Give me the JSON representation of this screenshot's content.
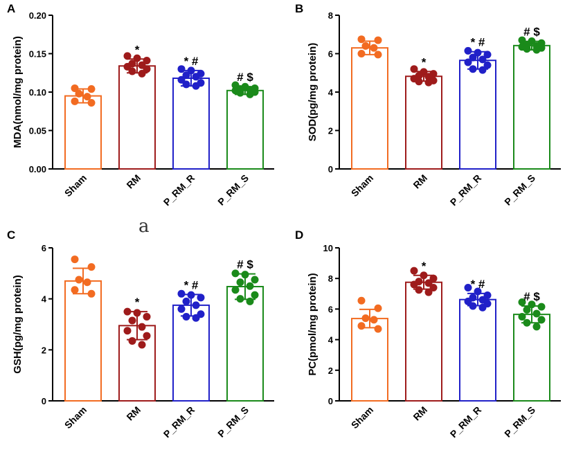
{
  "caption": "a",
  "categories": [
    "Sham",
    "RM",
    "P_RM_R",
    "P_RM_S"
  ],
  "colors": [
    "#f26b21",
    "#9e1b1b",
    "#2020c8",
    "#1a8a1a"
  ],
  "chart_data": [
    {
      "type": "bar",
      "panel_label": "A",
      "title": "",
      "xlabel": "",
      "ylabel": "MDA(nmol/mg protein)",
      "ylim": [
        0,
        0.2
      ],
      "yticks": [
        "0.00",
        "0.05",
        "0.10",
        "0.15",
        "0.20"
      ],
      "categories": [
        "Sham",
        "RM",
        "P_RM_R",
        "P_RM_S"
      ],
      "values": [
        0.095,
        0.134,
        0.118,
        0.102
      ],
      "errors": [
        0.009,
        0.009,
        0.01,
        0.005
      ],
      "annotations": [
        "",
        "*",
        "* #",
        "# $"
      ],
      "points": [
        [
          0.105,
          0.104,
          0.098,
          0.094,
          0.088,
          0.086
        ],
        [
          0.147,
          0.144,
          0.141,
          0.137,
          0.135,
          0.133,
          0.13,
          0.127,
          0.124
        ],
        [
          0.13,
          0.128,
          0.124,
          0.122,
          0.12,
          0.116,
          0.112,
          0.11,
          0.108
        ],
        [
          0.109,
          0.107,
          0.105,
          0.104,
          0.103,
          0.102,
          0.1,
          0.099,
          0.097
        ]
      ]
    },
    {
      "type": "bar",
      "panel_label": "B",
      "title": "",
      "xlabel": "",
      "ylabel": "SOD(pg/mg protein)",
      "ylim": [
        0,
        8
      ],
      "yticks": [
        "0",
        "2",
        "4",
        "6",
        "8"
      ],
      "categories": [
        "Sham",
        "RM",
        "P_RM_R",
        "P_RM_S"
      ],
      "values": [
        6.3,
        4.82,
        5.65,
        6.42
      ],
      "errors": [
        0.35,
        0.25,
        0.45,
        0.22
      ],
      "annotations": [
        "",
        "*",
        "* #",
        "# $"
      ],
      "points": [
        [
          6.75,
          6.7,
          6.4,
          6.3,
          6.0,
          5.95
        ],
        [
          5.2,
          5.05,
          4.95,
          4.85,
          4.8,
          4.7,
          4.6,
          4.55,
          4.5
        ],
        [
          6.15,
          6.05,
          5.95,
          5.8,
          5.7,
          5.55,
          5.4,
          5.2,
          5.15
        ],
        [
          6.7,
          6.65,
          6.55,
          6.45,
          6.4,
          6.35,
          6.3,
          6.25,
          6.2
        ]
      ]
    },
    {
      "type": "bar",
      "panel_label": "C",
      "title": "",
      "xlabel": "",
      "ylabel": "GSH(pg/mg protein)",
      "ylim": [
        0,
        6
      ],
      "yticks": [
        "0",
        "2",
        "4",
        "6"
      ],
      "categories": [
        "Sham",
        "RM",
        "P_RM_R",
        "P_RM_S"
      ],
      "values": [
        4.7,
        2.95,
        3.75,
        4.48
      ],
      "errors": [
        0.5,
        0.55,
        0.42,
        0.5
      ],
      "annotations": [
        "",
        "*",
        "* #",
        "# $"
      ],
      "points": [
        [
          5.55,
          5.25,
          4.75,
          4.65,
          4.35,
          4.2
        ],
        [
          3.5,
          3.45,
          3.3,
          3.15,
          2.9,
          2.75,
          2.55,
          2.35,
          2.2
        ],
        [
          4.2,
          4.15,
          4.05,
          3.9,
          3.75,
          3.6,
          3.4,
          3.3,
          3.25
        ],
        [
          5.0,
          4.95,
          4.75,
          4.65,
          4.5,
          4.35,
          4.15,
          4.0,
          3.9
        ]
      ]
    },
    {
      "type": "bar",
      "panel_label": "D",
      "title": "",
      "xlabel": "",
      "ylabel": "PC(pmol/mg protein)",
      "ylim": [
        0,
        10
      ],
      "yticks": [
        "0",
        "2",
        "4",
        "6",
        "8",
        "10"
      ],
      "categories": [
        "Sham",
        "RM",
        "P_RM_R",
        "P_RM_S"
      ],
      "values": [
        5.38,
        7.75,
        6.62,
        5.65
      ],
      "errors": [
        0.6,
        0.45,
        0.4,
        0.55
      ],
      "annotations": [
        "",
        "*",
        "* #",
        "# $"
      ],
      "points": [
        [
          6.55,
          6.05,
          5.4,
          5.3,
          4.9,
          4.7
        ],
        [
          8.5,
          8.2,
          8.0,
          7.8,
          7.7,
          7.6,
          7.4,
          7.25,
          7.1
        ],
        [
          7.4,
          7.15,
          6.9,
          6.75,
          6.6,
          6.5,
          6.35,
          6.2,
          6.1
        ],
        [
          6.45,
          6.3,
          6.15,
          5.95,
          5.7,
          5.5,
          5.3,
          5.1,
          4.85
        ]
      ]
    }
  ]
}
